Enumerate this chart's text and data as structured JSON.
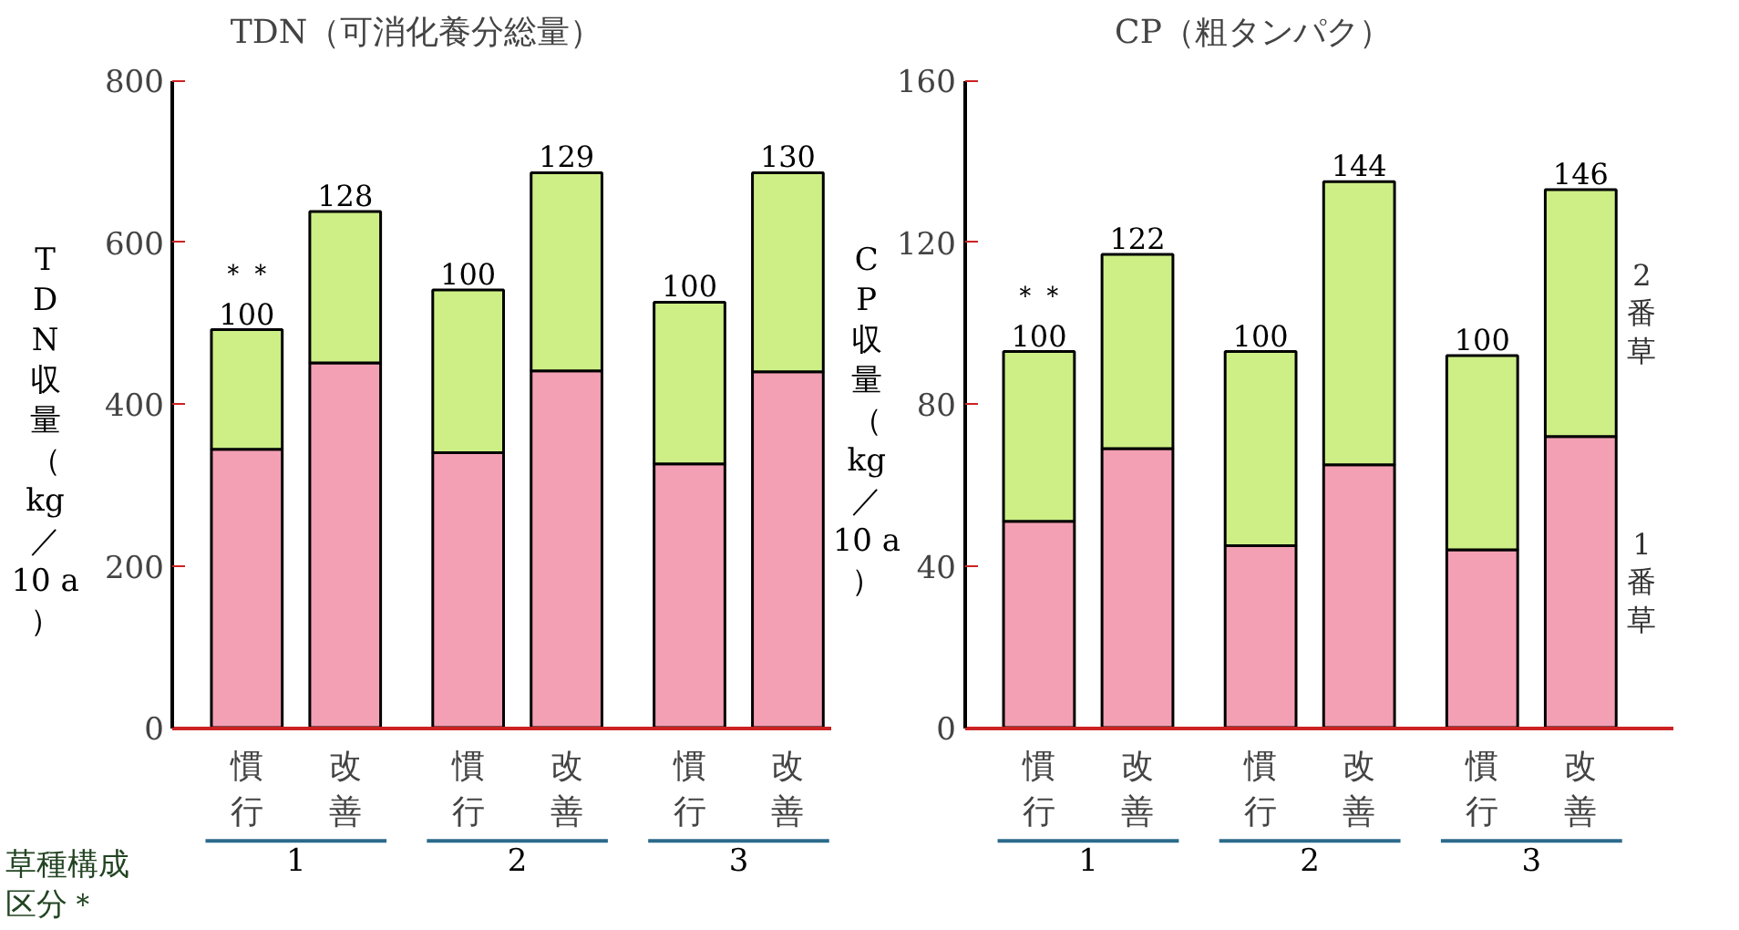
{
  "chart_data": [
    {
      "type": "bar",
      "stacked": true,
      "title": "TDN（可消化養分総量）",
      "ylabel": "TDN収量（kg／10 a）",
      "xlabel": "草種構成区分＊",
      "categories": [
        "慣行",
        "改善",
        "慣行",
        "改善",
        "慣行",
        "改善"
      ],
      "series": [
        {
          "color": "#f4a0b4",
          "values": [
            344,
            451,
            340,
            441,
            326,
            440
          ]
        },
        {
          "color": "#cdef86",
          "values": [
            148,
            187,
            201,
            245,
            200,
            246
          ]
        }
      ],
      "ylim": [
        0,
        800
      ],
      "yticks": [
        0,
        200,
        400,
        600,
        800
      ],
      "grid": false,
      "annotations": [
        {
          "text": "＊＊",
          "x": "慣行",
          "y": 492
        },
        {
          "text": "100",
          "y": 492
        },
        {
          "text": "128",
          "y": 638
        },
        {
          "text": "100",
          "y": 541
        },
        {
          "text": "129",
          "y": 686
        },
        {
          "text": "100",
          "y": 526
        },
        {
          "text": "130",
          "y": 686
        },
        "1",
        "2",
        "3"
      ]
    },
    {
      "type": "bar",
      "stacked": true,
      "title": "CP（粗タンパク）",
      "ylabel": "CP収量（kg／10 a）",
      "categories": [
        "慣行",
        "改善",
        "慣行",
        "改善",
        "慣行",
        "改善"
      ],
      "series": [
        {
          "name": "1番草",
          "color": "#f4a0b4",
          "values": [
            51,
            69,
            45,
            65,
            44,
            72
          ]
        },
        {
          "name": "2番草",
          "color": "#cdef86",
          "values": [
            42,
            48,
            48,
            70,
            48,
            61
          ]
        }
      ],
      "ylim": [
        0,
        160
      ],
      "yticks": [
        0,
        40,
        80,
        120,
        160
      ],
      "grid": false,
      "annotations": [
        {
          "text": "＊＊",
          "x": "慣行",
          "y": 93
        },
        {
          "text": "100",
          "y": 93
        },
        {
          "text": "122",
          "y": 117
        },
        {
          "text": "100",
          "y": 93
        },
        {
          "text": "144",
          "y": 135
        },
        {
          "text": "100",
          "y": 92
        },
        {
          "text": "146",
          "y": 133
        },
        "1",
        "2",
        "3"
      ]
    }
  ]
}
